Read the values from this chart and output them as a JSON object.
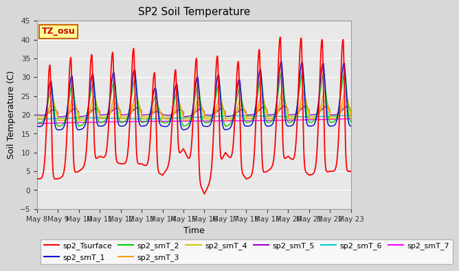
{
  "title": "SP2 Soil Temperature",
  "xlabel": "Time",
  "ylabel": "Soil Temperature (C)",
  "ylim": [
    -5,
    45
  ],
  "yticks": [
    -5,
    0,
    5,
    10,
    15,
    20,
    25,
    30,
    35,
    40,
    45
  ],
  "xtick_labels": [
    "May 8",
    "May 9",
    "May 10",
    "May 11",
    "May 12",
    "May 13",
    "May 14",
    "May 15",
    "May 16",
    "May 17",
    "May 18",
    "May 19",
    "May 20",
    "May 21",
    "May 22",
    "May 23"
  ],
  "bg_color": "#e0e0e0",
  "plot_bg_color": "#e0e0e0",
  "annotation_text": "TZ_osu",
  "annotation_color": "#cc0000",
  "annotation_bg": "#ffff99",
  "annotation_border": "#cc6600",
  "series_colors": {
    "sp2_Tsurface": "#ff0000",
    "sp2_smT_1": "#0000cc",
    "sp2_smT_2": "#00cc00",
    "sp2_smT_3": "#ff9900",
    "sp2_smT_4": "#cccc00",
    "sp2_smT_5": "#9900cc",
    "sp2_smT_6": "#00cccc",
    "sp2_smT_7": "#ff00ff"
  },
  "legend_labels": [
    "sp2_Tsurface",
    "sp2_smT_1",
    "sp2_smT_2",
    "sp2_smT_3",
    "sp2_smT_4",
    "sp2_smT_5",
    "sp2_smT_6",
    "sp2_smT_7"
  ]
}
